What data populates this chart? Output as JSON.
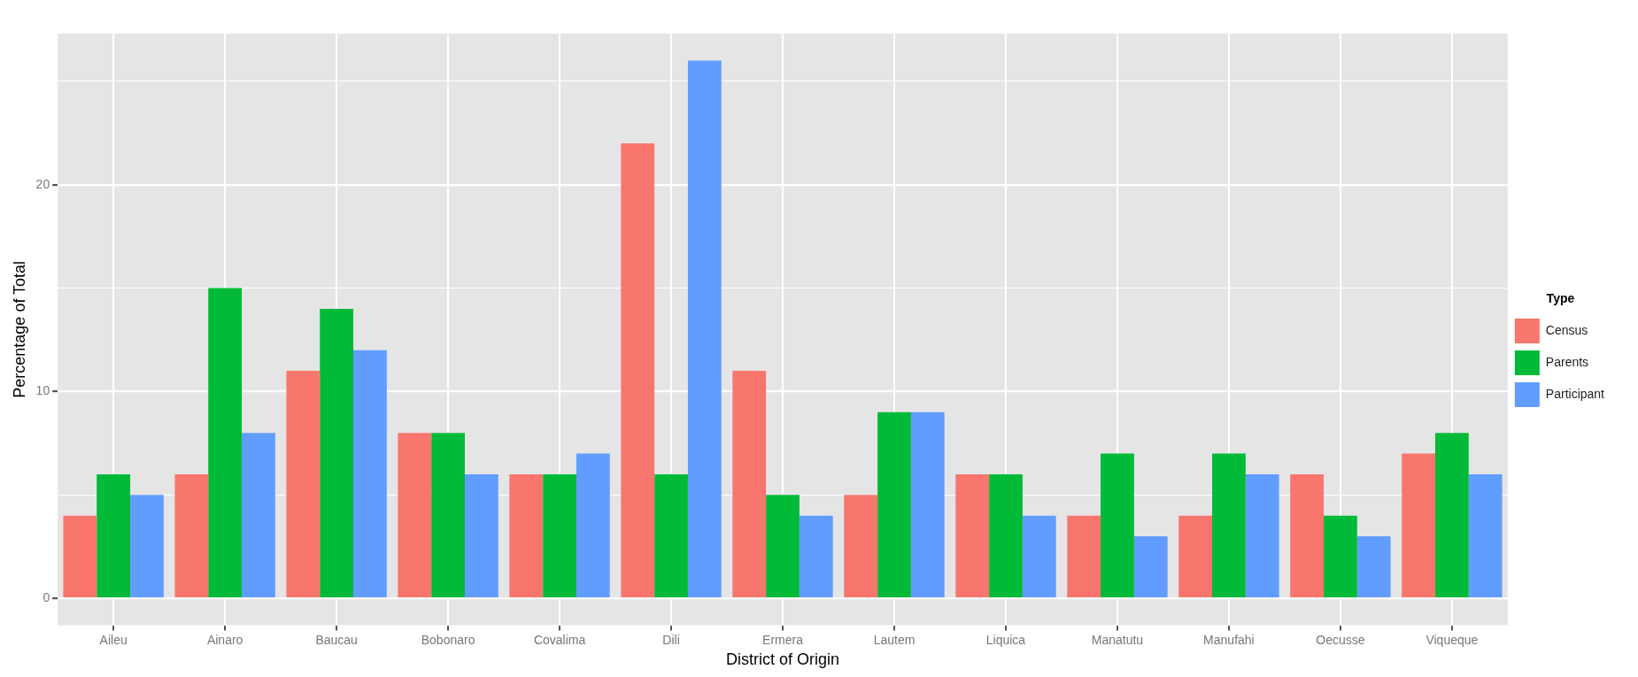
{
  "chart_data": {
    "type": "bar",
    "xlabel": "District of Origin",
    "ylabel": "Percentage of Total",
    "legend_title": "Type",
    "legend": "right",
    "grid": true,
    "categories": [
      "Aileu",
      "Ainaro",
      "Baucau",
      "Bobonaro",
      "Covalima",
      "Dili",
      "Ermera",
      "Lautem",
      "Liquica",
      "Manatutu",
      "Manufahi",
      "Oecusse",
      "Viqueque"
    ],
    "ylim": [
      -1.3,
      27.3
    ],
    "yticks": [
      0,
      {
        "value": 5,
        "label": null
      },
      10,
      {
        "value": 15,
        "label": null
      },
      20,
      {
        "value": 25,
        "label": null
      }
    ],
    "series": [
      {
        "name": "Census",
        "color": "#f8766d",
        "values": [
          4,
          6,
          11,
          8,
          6,
          22,
          11,
          5,
          6,
          4,
          4,
          6,
          7
        ]
      },
      {
        "name": "Parents",
        "color": "#00ba38",
        "values": [
          6,
          15,
          14,
          8,
          6,
          6,
          5,
          9,
          6,
          7,
          7,
          4,
          8
        ]
      },
      {
        "name": "Participant",
        "color": "#619cff",
        "values": [
          5,
          8,
          12,
          6,
          7,
          26,
          4,
          9,
          4,
          3,
          6,
          3,
          6
        ]
      }
    ]
  }
}
